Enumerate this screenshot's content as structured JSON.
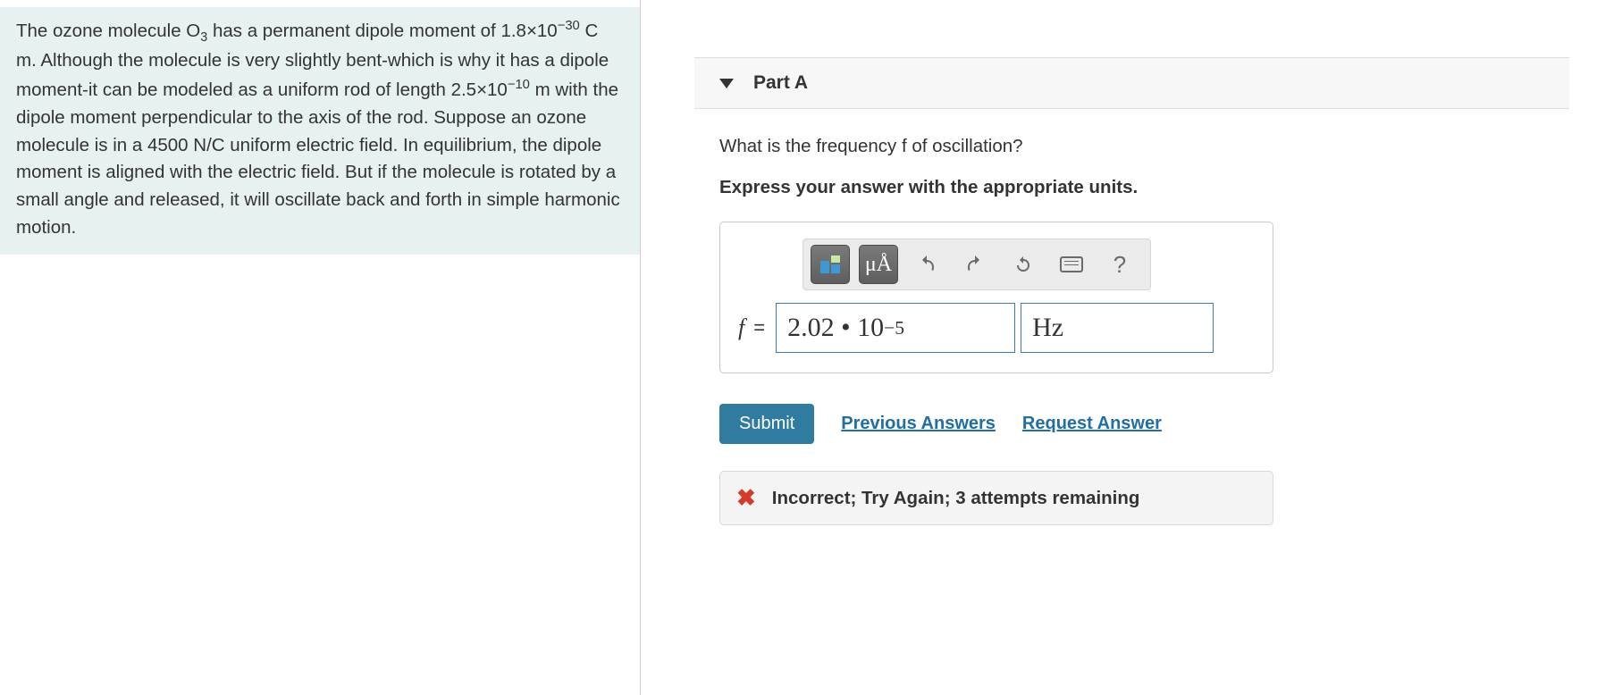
{
  "problem": {
    "html": "The ozone molecule O<sub>3</sub> has a permanent dipole moment of 1.8×10<sup>−30</sup> C m. Although the molecule is very slightly bent-which is why it has a dipole moment-it can be modeled as a uniform rod of length 2.5×10<sup>−10</sup> m with the dipole moment perpendicular to the axis of the rod. Suppose an ozone molecule is in a 4500 N/C uniform electric field. In equilibrium, the dipole moment is aligned with the electric field. But if the molecule is rotated by a small angle and released, it will oscillate back and forth in simple harmonic motion.",
    "background_color": "#e7f1f2"
  },
  "part": {
    "label": "Part A",
    "question": "What is the frequency f of oscillation?",
    "instruction": "Express your answer with the appropriate units."
  },
  "toolbar": {
    "templates_tooltip": "Templates",
    "symbols_label": "μÅ",
    "undo_tooltip": "Undo",
    "redo_tooltip": "Redo",
    "reset_tooltip": "Reset",
    "keyboard_tooltip": "Keyboard shortcuts",
    "help_label": "?"
  },
  "answer": {
    "variable": "f",
    "equals": "=",
    "value_html": "2.02 • 10<sup>−5</sup>",
    "unit": "Hz"
  },
  "actions": {
    "submit": "Submit",
    "previous": "Previous Answers",
    "request": "Request Answer"
  },
  "feedback": {
    "icon": "✖",
    "text": "Incorrect; Try Again; 3 attempts remaining"
  },
  "colors": {
    "submit_bg": "#2f7ca0",
    "link": "#1f6ea6",
    "error": "#d43b2a",
    "input_border": "#3b7da8"
  }
}
